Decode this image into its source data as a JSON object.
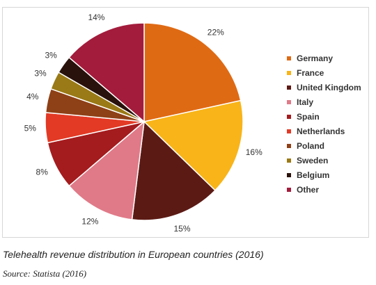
{
  "chart_data": {
    "type": "pie",
    "title": "",
    "categories": [
      "Germany",
      "France",
      "United Kingdom",
      "Italy",
      "Spain",
      "Netherlands",
      "Poland",
      "Sweden",
      "Belgium",
      "Other"
    ],
    "values": [
      22,
      16,
      15,
      12,
      8,
      5,
      4,
      3,
      3,
      14
    ],
    "value_labels": [
      "22%",
      "16%",
      "15%",
      "12%",
      "8%",
      "5%",
      "4%",
      "3%",
      "3%",
      "14%"
    ],
    "colors": [
      "#df6a14",
      "#f8b418",
      "#5c1a15",
      "#e07a88",
      "#a41c1e",
      "#e23a25",
      "#8e4016",
      "#9a7a16",
      "#2a120c",
      "#a31c3c"
    ],
    "legend_position": "right",
    "start_angle": "12 o'clock",
    "direction": "clockwise"
  },
  "caption": "Telehealth revenue distribution in European countries (2016)",
  "source": "Source: Statista (2016)"
}
